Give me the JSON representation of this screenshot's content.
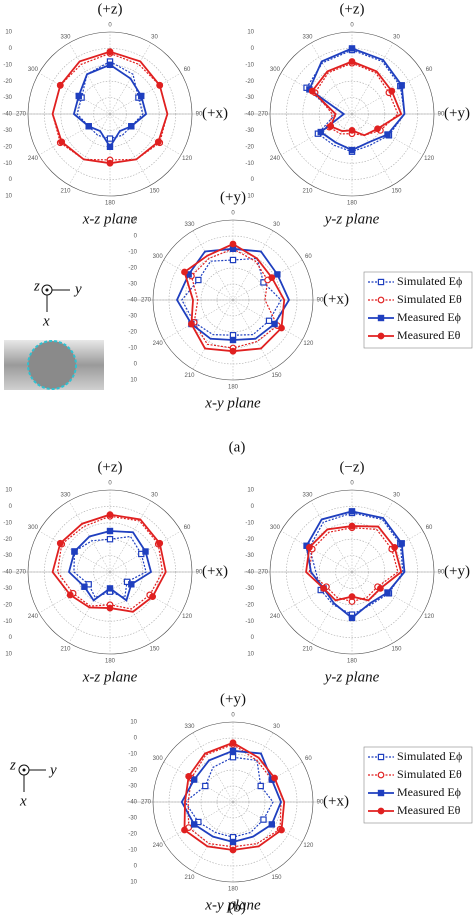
{
  "figure": {
    "panels": [
      "(a)",
      "(b)"
    ],
    "axis_symbols": [
      "z",
      "y",
      "x"
    ]
  },
  "chart_data": [
    {
      "type": "polar",
      "top_label": "(+z)",
      "right_label": "(+x)",
      "caption": "x-z plane",
      "rlim": [
        -40,
        10
      ],
      "rticks": [
        -40,
        -30,
        -20,
        -10,
        0,
        10
      ],
      "theta": [
        0,
        30,
        60,
        90,
        120,
        150,
        180,
        210,
        240,
        270,
        300,
        330
      ],
      "series": [
        {
          "name": "Simulated Eϕ",
          "color": "#1f3fbf",
          "dashed": true,
          "marker": "square",
          "filled": false,
          "values": [
            -8,
            -12,
            -20,
            -20,
            -25,
            -25,
            -25,
            -25,
            -25,
            -20,
            -20,
            -12
          ]
        },
        {
          "name": "Simulated Eθ",
          "color": "#e02020",
          "dashed": true,
          "marker": "circle",
          "filled": false,
          "values": [
            -3,
            -5,
            -5,
            -5,
            -5,
            -8,
            -12,
            -8,
            -5,
            -5,
            -5,
            -5
          ]
        },
        {
          "name": "Measured Eϕ",
          "color": "#1f3fbf",
          "dashed": false,
          "marker": "square",
          "filled": true,
          "values": [
            -10,
            -15,
            -18,
            -18,
            -25,
            -28,
            -20,
            -28,
            -25,
            -18,
            -18,
            -12
          ]
        },
        {
          "name": "Measured Eθ",
          "color": "#e02020",
          "dashed": false,
          "marker": "circle",
          "filled": true,
          "values": [
            -2,
            -3,
            -5,
            -5,
            -6,
            -8,
            -10,
            -8,
            -6,
            -5,
            -5,
            -3
          ]
        }
      ]
    },
    {
      "type": "polar",
      "top_label": "(+z)",
      "right_label": "(+y)",
      "caption": "y-z plane",
      "rlim": [
        -40,
        10
      ],
      "rticks": [
        -40,
        -30,
        -20,
        -10,
        0,
        10
      ],
      "theta": [
        0,
        30,
        60,
        90,
        120,
        150,
        180,
        210,
        240,
        270,
        300,
        330
      ],
      "series": [
        {
          "name": "Simulated Eϕ",
          "color": "#1f3fbf",
          "dashed": true,
          "marker": "square",
          "filled": false,
          "values": [
            -1,
            -3,
            -6,
            -8,
            -14,
            -18,
            -17,
            -18,
            -16,
            -30,
            -8,
            -4
          ]
        },
        {
          "name": "Simulated Eθ",
          "color": "#e02020",
          "dashed": true,
          "marker": "circle",
          "filled": false,
          "values": [
            -9,
            -11,
            -14,
            -12,
            -20,
            -25,
            -28,
            -26,
            -24,
            -28,
            -14,
            -11
          ]
        },
        {
          "name": "Measured Eϕ",
          "color": "#1f3fbf",
          "dashed": false,
          "marker": "square",
          "filled": true,
          "values": [
            0,
            -2,
            -5,
            -8,
            -15,
            -20,
            -18,
            -20,
            -18,
            -35,
            -10,
            -3
          ]
        },
        {
          "name": "Measured Eθ",
          "color": "#e02020",
          "dashed": false,
          "marker": "circle",
          "filled": true,
          "values": [
            -8,
            -10,
            -12,
            -10,
            -22,
            -25,
            -30,
            -28,
            -25,
            -30,
            -12,
            -10
          ]
        }
      ]
    },
    {
      "type": "polar",
      "top_label": "(+y)",
      "right_label": "(+x)",
      "caption": "x-y plane",
      "rlim": [
        -40,
        10
      ],
      "rticks": [
        -40,
        -30,
        -20,
        -10,
        0,
        10
      ],
      "theta": [
        0,
        30,
        60,
        90,
        120,
        150,
        180,
        210,
        240,
        270,
        300,
        330
      ],
      "series": [
        {
          "name": "Simulated Eϕ",
          "color": "#1f3fbf",
          "dashed": true,
          "marker": "square",
          "filled": false,
          "values": [
            -15,
            -10,
            -18,
            -10,
            -14,
            -15,
            -18,
            -15,
            -12,
            -8,
            -15,
            -12
          ]
        },
        {
          "name": "Simulated Eθ",
          "color": "#e02020",
          "dashed": true,
          "marker": "circle",
          "filled": false,
          "values": [
            -8,
            -12,
            -15,
            -20,
            -8,
            -10,
            -10,
            -8,
            -12,
            -18,
            -10,
            -10
          ]
        },
        {
          "name": "Measured Eϕ",
          "color": "#1f3fbf",
          "dashed": false,
          "marker": "square",
          "filled": true,
          "values": [
            -8,
            -5,
            -8,
            -5,
            -10,
            -12,
            -15,
            -12,
            -10,
            -5,
            -8,
            -5
          ]
        },
        {
          "name": "Measured Eθ",
          "color": "#e02020",
          "dashed": false,
          "marker": "circle",
          "filled": true,
          "values": [
            -5,
            -10,
            -12,
            -8,
            -5,
            -5,
            -8,
            -5,
            -10,
            -15,
            -5,
            -8
          ]
        }
      ]
    },
    {
      "type": "polar",
      "top_label": "(+z)",
      "right_label": "(+x)",
      "caption": "x-z plane",
      "rlim": [
        -40,
        10
      ],
      "rticks": [
        -40,
        -30,
        -20,
        -10,
        0,
        10
      ],
      "theta": [
        0,
        30,
        60,
        90,
        120,
        150,
        180,
        210,
        240,
        270,
        300,
        330
      ],
      "series": [
        {
          "name": "Simulated Eϕ",
          "color": "#1f3fbf",
          "dashed": true,
          "marker": "square",
          "filled": false,
          "values": [
            -20,
            -15,
            -18,
            -18,
            -28,
            -22,
            -28,
            -22,
            -25,
            -18,
            -15,
            -18
          ]
        },
        {
          "name": "Simulated Eθ",
          "color": "#e02020",
          "dashed": true,
          "marker": "circle",
          "filled": false,
          "values": [
            -6,
            -4,
            -6,
            -8,
            -12,
            -14,
            -20,
            -16,
            -14,
            -8,
            -6,
            -8
          ]
        },
        {
          "name": "Measured Eϕ",
          "color": "#1f3fbf",
          "dashed": false,
          "marker": "square",
          "filled": true,
          "values": [
            -15,
            -12,
            -15,
            -15,
            -25,
            -20,
            -30,
            -20,
            -22,
            -15,
            -15,
            -15
          ]
        },
        {
          "name": "Measured Eθ",
          "color": "#e02020",
          "dashed": false,
          "marker": "circle",
          "filled": true,
          "values": [
            -5,
            -3,
            -5,
            -6,
            -10,
            -12,
            -18,
            -15,
            -12,
            -5,
            -5,
            -6
          ]
        }
      ]
    },
    {
      "type": "polar",
      "top_label": "(−z)",
      "right_label": "(+y)",
      "caption": "y-z plane",
      "rlim": [
        -40,
        10
      ],
      "rticks": [
        -40,
        -30,
        -20,
        -10,
        0,
        10
      ],
      "theta": [
        0,
        30,
        60,
        90,
        120,
        150,
        180,
        210,
        240,
        270,
        300,
        330
      ],
      "series": [
        {
          "name": "Simulated Eϕ",
          "color": "#1f3fbf",
          "dashed": true,
          "marker": "square",
          "filled": false,
          "values": [
            -4,
            -3,
            -6,
            -9,
            -14,
            -17,
            -14,
            -17,
            -18,
            -18,
            -10,
            -5
          ]
        },
        {
          "name": "Simulated Eθ",
          "color": "#e02020",
          "dashed": true,
          "marker": "circle",
          "filled": false,
          "values": [
            -13,
            -10,
            -12,
            -12,
            -22,
            -22,
            -22,
            -22,
            -22,
            -14,
            -12,
            -12
          ]
        },
        {
          "name": "Measured Eϕ",
          "color": "#1f3fbf",
          "dashed": false,
          "marker": "square",
          "filled": true,
          "values": [
            -3,
            -2,
            -5,
            -8,
            -15,
            -18,
            -12,
            -18,
            -20,
            -15,
            -8,
            -3
          ]
        },
        {
          "name": "Measured Eθ",
          "color": "#e02020",
          "dashed": false,
          "marker": "circle",
          "filled": true,
          "values": [
            -12,
            -8,
            -10,
            -10,
            -20,
            -20,
            -25,
            -20,
            -20,
            -12,
            -10,
            -10
          ]
        }
      ]
    },
    {
      "type": "polar",
      "top_label": "(+y)",
      "right_label": "(+x)",
      "caption": "x-y plane",
      "rlim": [
        -40,
        10
      ],
      "rticks": [
        -40,
        -30,
        -20,
        -10,
        0,
        10
      ],
      "theta": [
        0,
        30,
        60,
        90,
        120,
        150,
        180,
        210,
        240,
        270,
        300,
        330
      ],
      "series": [
        {
          "name": "Simulated Eϕ",
          "color": "#1f3fbf",
          "dashed": true,
          "marker": "square",
          "filled": false,
          "values": [
            -12,
            -10,
            -20,
            -15,
            -18,
            -18,
            -18,
            -18,
            -15,
            -10,
            -20,
            -15
          ]
        },
        {
          "name": "Simulated Eθ",
          "color": "#e02020",
          "dashed": true,
          "marker": "circle",
          "filled": false,
          "values": [
            -4,
            -10,
            -12,
            -10,
            -6,
            -10,
            -12,
            -10,
            -8,
            -12,
            -10,
            -6
          ]
        },
        {
          "name": "Measured Eϕ",
          "color": "#1f3fbf",
          "dashed": false,
          "marker": "square",
          "filled": true,
          "values": [
            -8,
            -5,
            -12,
            -10,
            -12,
            -15,
            -15,
            -15,
            -12,
            -8,
            -12,
            -10
          ]
        },
        {
          "name": "Measured Eθ",
          "color": "#e02020",
          "dashed": false,
          "marker": "circle",
          "filled": true,
          "values": [
            -3,
            -8,
            -10,
            -8,
            -5,
            -8,
            -10,
            -8,
            -5,
            -10,
            -8,
            -5
          ]
        }
      ]
    }
  ]
}
